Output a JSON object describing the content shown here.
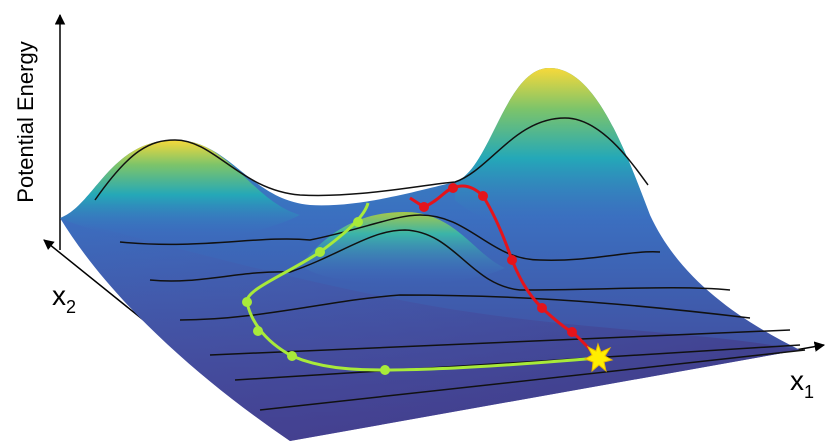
{
  "axes": {
    "z": {
      "label": "Potential Energy"
    },
    "x1": {
      "base": "x",
      "sub": "1"
    },
    "x2": {
      "base": "x",
      "sub": "2"
    }
  }
}
